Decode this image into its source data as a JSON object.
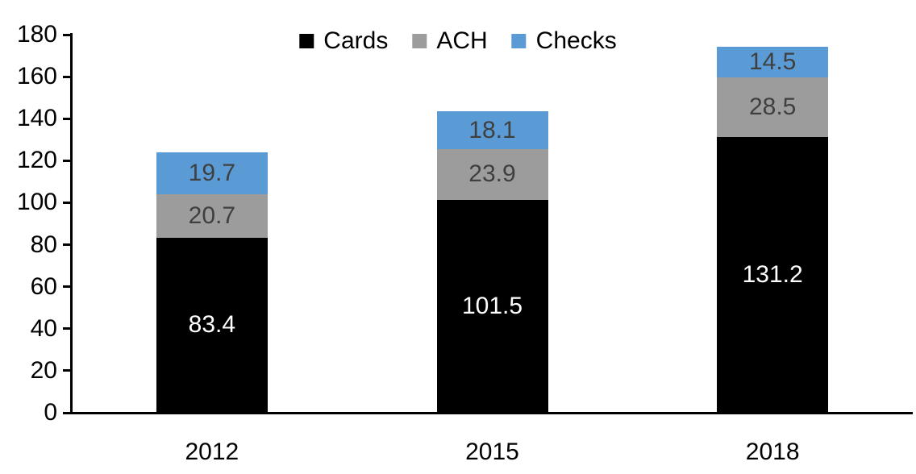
{
  "chart_data": {
    "type": "bar",
    "stacked": true,
    "orientation": "vertical",
    "categories": [
      "2012",
      "2015",
      "2018"
    ],
    "series": [
      {
        "name": "Cards",
        "color": "#000000",
        "label_color": "#FFFFFF",
        "values": [
          83.4,
          101.5,
          131.2
        ]
      },
      {
        "name": "ACH",
        "color": "#9C9C9C",
        "label_color": "#3F3F3F",
        "values": [
          20.7,
          23.9,
          28.5
        ]
      },
      {
        "name": "Checks",
        "color": "#5B9BD5",
        "label_color": "#3F3F3F",
        "values": [
          19.7,
          18.1,
          14.5
        ]
      }
    ],
    "title": "",
    "xlabel": "",
    "ylabel": "",
    "ylim": [
      0,
      180
    ],
    "ytick_step": 20,
    "ytick_labels": [
      "0",
      "20",
      "40",
      "60",
      "80",
      "100",
      "120",
      "140",
      "160",
      "180"
    ],
    "grid": false,
    "legend_position": "top-center",
    "data_labels": true,
    "axis_color": "#000000",
    "background_color": "#FFFFFF"
  }
}
